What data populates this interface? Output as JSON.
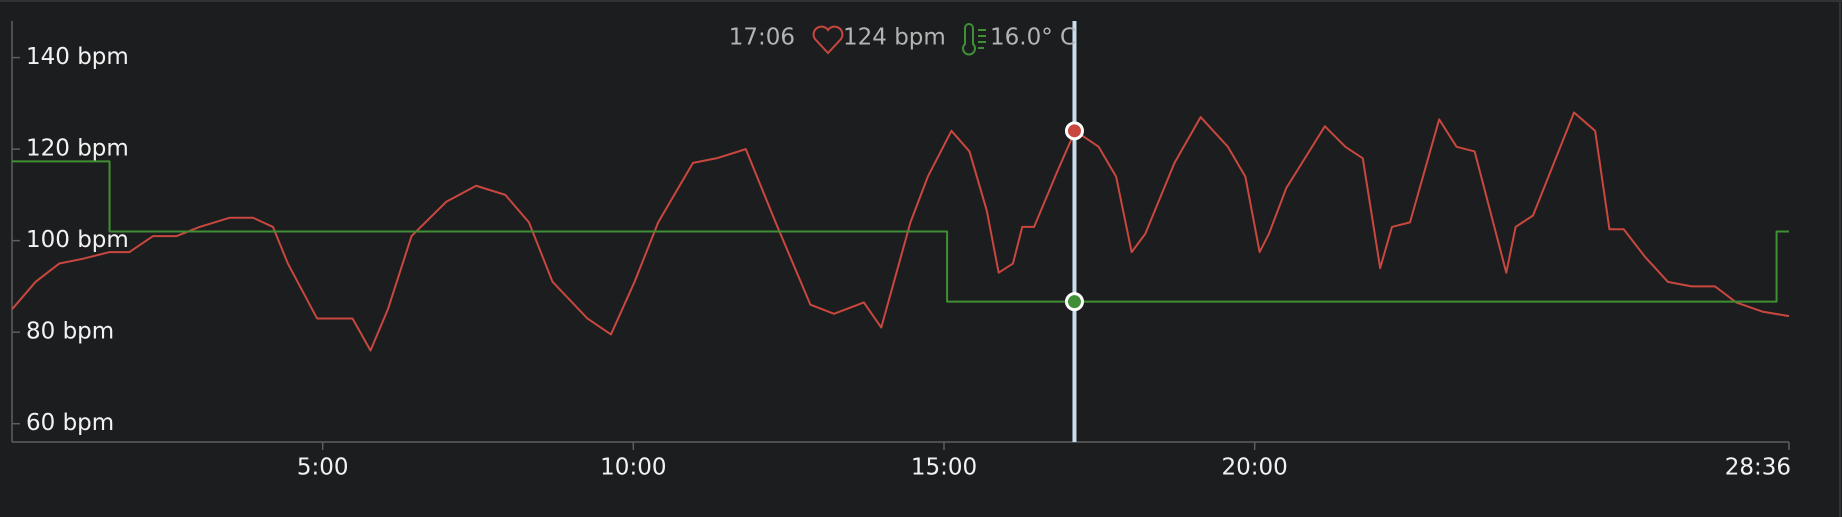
{
  "chart_data": {
    "type": "line",
    "xlim": [
      0,
      28.6
    ],
    "xticks": [
      {
        "value": 5,
        "label": "5:00"
      },
      {
        "value": 10,
        "label": "10:00"
      },
      {
        "value": 15,
        "label": "15:00"
      },
      {
        "value": 20,
        "label": "20:00"
      },
      {
        "value": 28.6,
        "label": "28:36"
      }
    ],
    "ylim": [
      56,
      148
    ],
    "yticks": [
      {
        "value": 60,
        "label": "60 bpm"
      },
      {
        "value": 80,
        "label": "80 bpm"
      },
      {
        "value": 100,
        "label": "100 bpm"
      },
      {
        "value": 120,
        "label": "120 bpm"
      },
      {
        "value": 140,
        "label": "140 bpm"
      }
    ],
    "y2lim": [
      14,
      20
    ],
    "series": [
      {
        "color": "#c8473e",
        "x": [
          0,
          0.38,
          0.76,
          1.13,
          1.57,
          1.89,
          2.27,
          2.65,
          3.02,
          3.5,
          3.88,
          4.2,
          4.44,
          4.91,
          5.48,
          5.77,
          6.05,
          6.43,
          6.99,
          7.47,
          7.94,
          8.32,
          8.7,
          9.26,
          9.64,
          10.02,
          10.4,
          10.96,
          11.34,
          11.81,
          12.29,
          12.85,
          13.23,
          13.71,
          13.99,
          14.46,
          14.74,
          15.12,
          15.41,
          15.69,
          15.88,
          16.11,
          16.26,
          16.45,
          16.82,
          17.11,
          17.49,
          17.77,
          18.02,
          18.24,
          18.71,
          19.13,
          19.57,
          19.85,
          20.08,
          20.23,
          20.51,
          21.13,
          21.46,
          21.74,
          22.02,
          22.21,
          22.5,
          22.97,
          23.25,
          23.54,
          24.05,
          24.2,
          24.48,
          25.14,
          25.48,
          25.71,
          25.94,
          26.28,
          26.65,
          27.03,
          27.41,
          27.75,
          28.17,
          28.6
        ],
        "values": [
          85,
          91,
          95,
          96,
          97.5,
          97.5,
          101,
          101,
          103,
          105,
          105,
          103,
          95,
          83,
          83,
          76,
          85,
          101,
          108.5,
          112,
          110,
          104,
          91,
          83,
          79.5,
          91,
          104,
          117,
          118,
          120,
          104,
          86,
          84,
          86.5,
          81,
          104,
          114,
          124,
          119.5,
          106.5,
          93,
          95,
          103,
          103,
          115,
          124,
          120.5,
          114,
          97.5,
          101.5,
          117,
          127,
          120.5,
          114,
          97.5,
          101.5,
          111.5,
          125,
          120.5,
          118,
          94,
          103,
          104,
          126.5,
          120.5,
          119.5,
          93,
          103,
          105.5,
          128,
          124,
          102.5,
          102.5,
          96.5,
          91,
          90,
          90,
          86.5,
          84.5,
          83.5
        ]
      },
      {
        "color": "#3f8f34",
        "axis": "y2",
        "step": "post",
        "x": [
          0,
          1.57,
          15.05,
          28.4,
          28.6
        ],
        "values": [
          18,
          17,
          16,
          17,
          17
        ]
      }
    ],
    "cursor": {
      "x": {
        "value": 17.1,
        "label": "17:06"
      },
      "hr": {
        "value": 124,
        "label": "124 bpm"
      },
      "temp": {
        "value": 16.0,
        "label": "16.0° C"
      },
      "line_color": "#c9dded"
    }
  }
}
